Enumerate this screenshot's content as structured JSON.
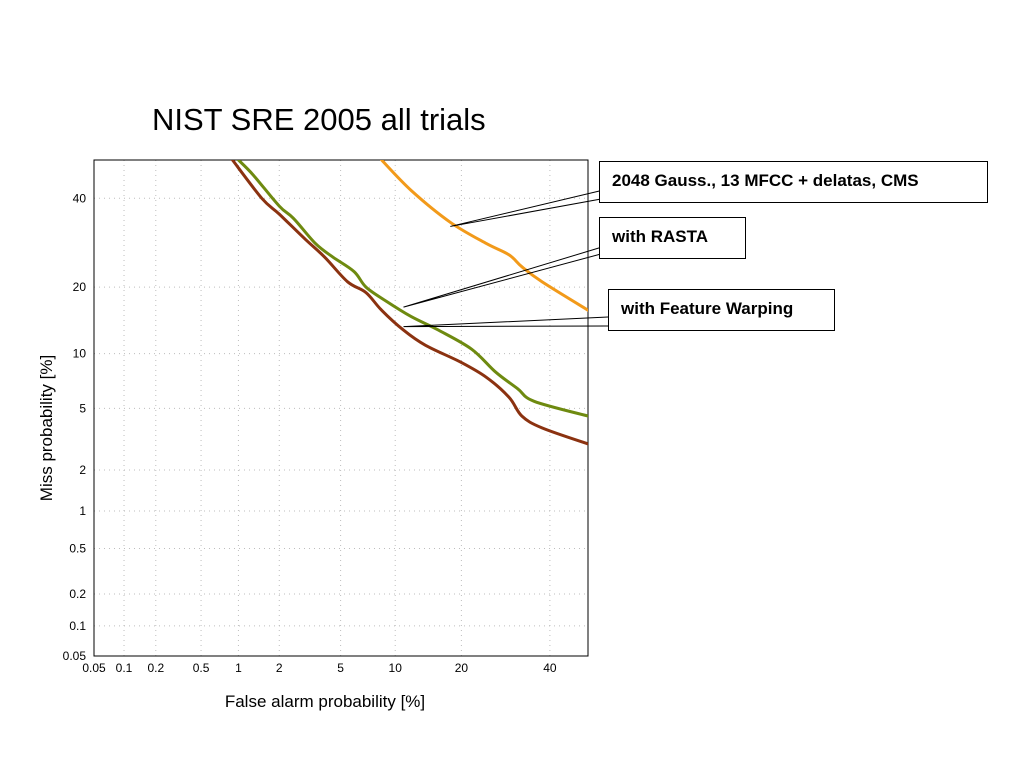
{
  "chart_data": {
    "type": "line",
    "title": "NIST SRE 2005 all trials",
    "xlabel": "False alarm probability [%]",
    "ylabel": "Miss probability [%]",
    "x_scale": "probit",
    "y_scale": "probit",
    "xlim": [
      0.05,
      50
    ],
    "ylim": [
      0.05,
      50
    ],
    "x_ticks": [
      "0.05",
      "0.1",
      "0.2",
      "0.5",
      "1",
      "2",
      "5",
      "10",
      "20",
      "40"
    ],
    "y_ticks": [
      "0.05",
      "0.1",
      "0.2",
      "0.5",
      "1",
      "2",
      "5",
      "10",
      "20",
      "40"
    ],
    "grid": true,
    "series": [
      {
        "name": "2048 Gauss., 13 MFCC + delatas, CMS",
        "color": "#f29a1a",
        "points": [
          [
            8.5,
            50
          ],
          [
            12,
            42
          ],
          [
            18,
            34
          ],
          [
            25,
            29
          ],
          [
            30,
            26.5
          ],
          [
            33,
            24
          ],
          [
            38,
            21
          ],
          [
            50,
            16
          ]
        ]
      },
      {
        "name": "with RASTA",
        "color": "#6e8a10",
        "points": [
          [
            1.0,
            50
          ],
          [
            1.3,
            46
          ],
          [
            2.0,
            38
          ],
          [
            2.5,
            35
          ],
          [
            3.5,
            29
          ],
          [
            4.5,
            26
          ],
          [
            6.0,
            23
          ],
          [
            7.0,
            20
          ],
          [
            9.0,
            17.5
          ],
          [
            12,
            15
          ],
          [
            16,
            13
          ],
          [
            22,
            10.5
          ],
          [
            27,
            8
          ],
          [
            32,
            6.5
          ],
          [
            36,
            5.5
          ],
          [
            50,
            4.5
          ]
        ]
      },
      {
        "name": "with Feature Warping",
        "color": "#8b3210",
        "points": [
          [
            0.9,
            50
          ],
          [
            1.5,
            40
          ],
          [
            2.0,
            36
          ],
          [
            3.0,
            30
          ],
          [
            4.0,
            26
          ],
          [
            5.5,
            21
          ],
          [
            7.0,
            19
          ],
          [
            8.5,
            16
          ],
          [
            11,
            13
          ],
          [
            14,
            11
          ],
          [
            20,
            9
          ],
          [
            25,
            7.5
          ],
          [
            30,
            5.8
          ],
          [
            33,
            4.5
          ],
          [
            38,
            3.8
          ],
          [
            50,
            3
          ]
        ]
      }
    ],
    "annotations": [
      "2048 Gauss., 13 MFCC + delatas, CMS",
      "with RASTA",
      "with Feature Warping"
    ]
  }
}
